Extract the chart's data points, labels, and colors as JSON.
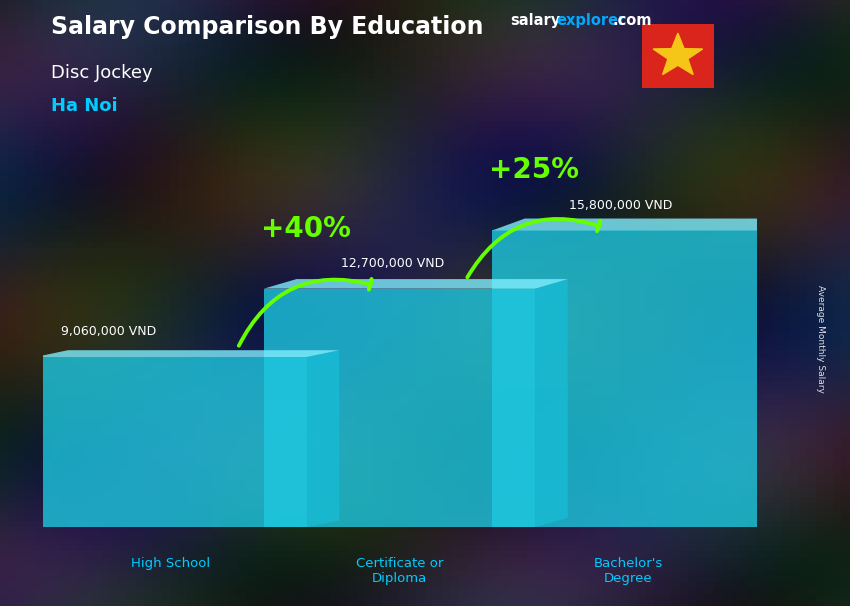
{
  "title": "Salary Comparison By Education",
  "subtitle1": "Disc Jockey",
  "subtitle2": "Ha Noi",
  "categories": [
    "High School",
    "Certificate or\nDiploma",
    "Bachelor's\nDegree"
  ],
  "values": [
    9060000,
    12700000,
    15800000
  ],
  "value_labels": [
    "9,060,000 VND",
    "12,700,000 VND",
    "15,800,000 VND"
  ],
  "pct_labels": [
    "+40%",
    "+25%"
  ],
  "bar_color_main": "#00c8e0",
  "bar_color_light": "#40ddf0",
  "bar_color_dark": "#0088aa",
  "bar_alpha": 0.82,
  "background_color": "#2a2a3a",
  "title_color": "#ffffff",
  "subtitle1_color": "#ffffff",
  "subtitle2_color": "#00ccff",
  "value_label_color": "#ffffff",
  "pct_color": "#aaff00",
  "xlabel_color": "#00ccff",
  "ylabel_text": "Average Monthly Salary",
  "brand_salary_color": "#ffffff",
  "brand_explorer_color": "#00aaff",
  "brand_com_color": "#ffffff",
  "arrow_color": "#66ff00",
  "ylim": [
    0,
    20000000
  ],
  "bar_width": 0.38,
  "bar_positions": [
    0.18,
    0.5,
    0.82
  ],
  "figsize": [
    8.5,
    6.06
  ],
  "dpi": 100
}
